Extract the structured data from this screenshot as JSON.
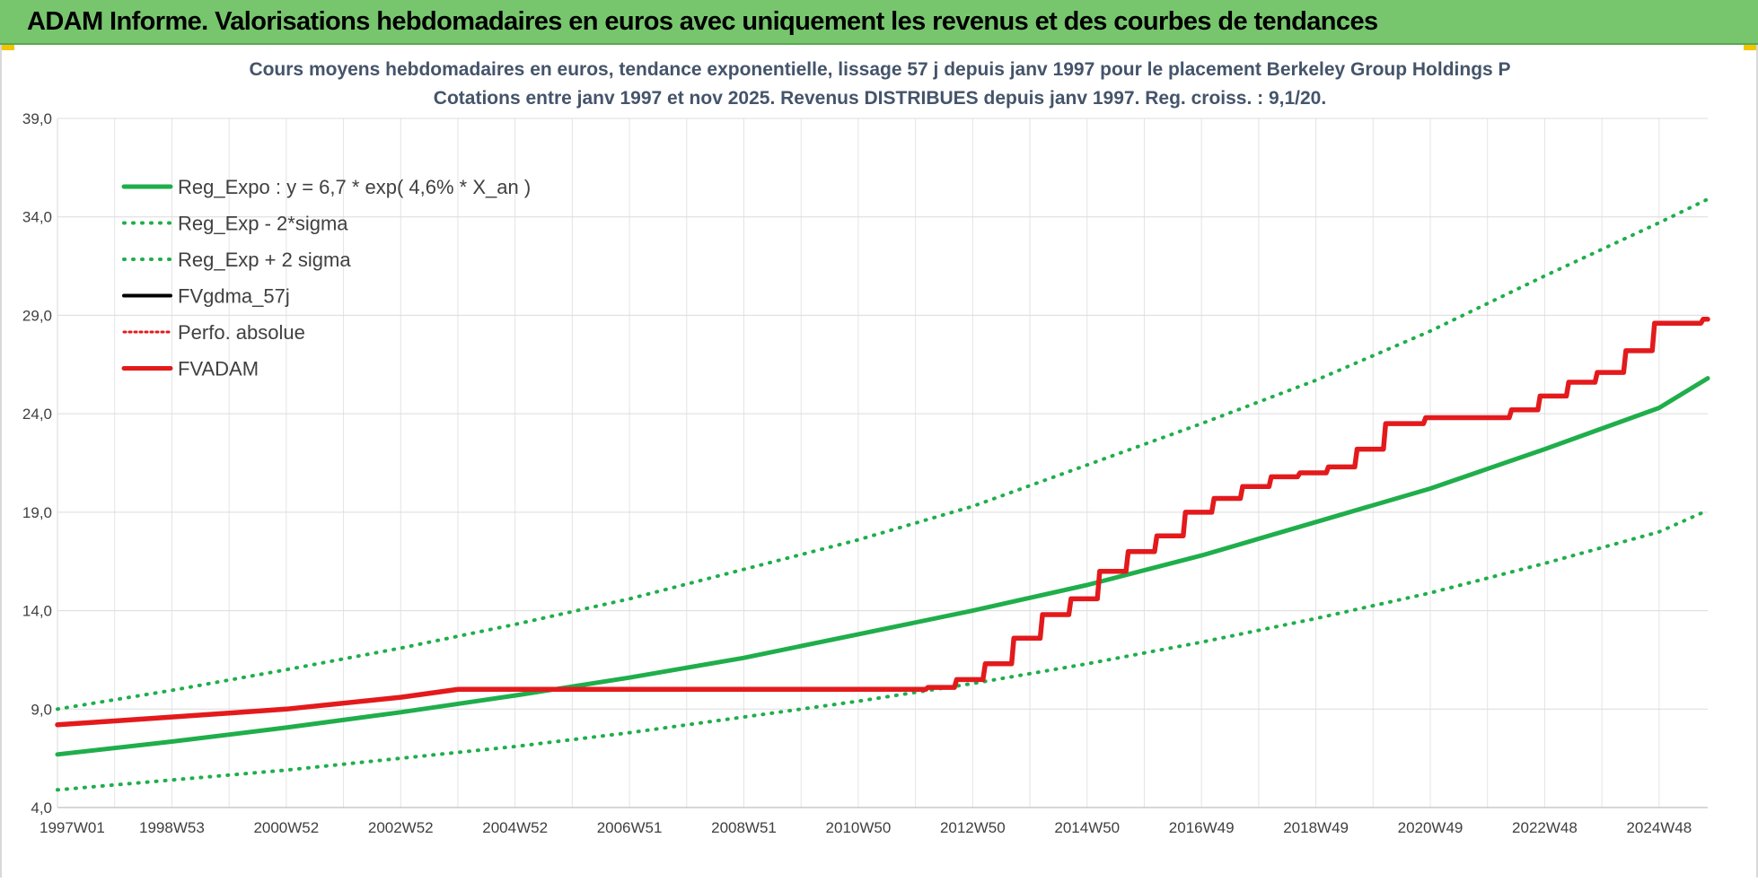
{
  "header": {
    "title": "ADAM Informe. Valorisations hebdomadaires en euros avec uniquement les revenus et des courbes de tendances"
  },
  "chart_data": {
    "type": "line",
    "title": "Cours moyens hebdomadaires en euros, tendance exponentielle, lissage 57 j depuis janv 1997 pour le placement Berkeley Group Holdings P",
    "subtitle": "Cotations entre janv 1997 et nov 2025. Revenus DISTRIBUES depuis janv 1997. Reg. croiss. : 9,1/20.",
    "xlabel": "",
    "ylabel": "",
    "x_range": [
      1997.0,
      2025.85
    ],
    "ylim": [
      4,
      39
    ],
    "y_ticks": [
      4.0,
      9.0,
      14.0,
      19.0,
      24.0,
      29.0,
      34.0,
      39.0
    ],
    "y_tick_labels": [
      "4,0",
      "9,0",
      "14,0",
      "19,0",
      "24,0",
      "29,0",
      "34,0",
      "39,0"
    ],
    "x_ticks": [
      1997.0,
      1999.0,
      2001.0,
      2003.0,
      2005.0,
      2007.0,
      2009.0,
      2011.0,
      2013.0,
      2015.0,
      2017.0,
      2019.0,
      2021.0,
      2023.0,
      2025.0
    ],
    "x_tick_labels": [
      "1997W01",
      "1998W53",
      "2000W52",
      "2002W52",
      "2004W52",
      "2006W51",
      "2008W51",
      "2010W50",
      "2012W50",
      "2014W50",
      "2016W49",
      "2018W49",
      "2020W49",
      "2022W48",
      "2024W48"
    ],
    "grid": true,
    "legend_position": "top-left",
    "series": [
      {
        "name": "Reg_Expo : y = 6,7 * exp( 4,6% *  X_an )",
        "color": "#1fae4b",
        "style": "solid",
        "x": [
          1997.0,
          1999.0,
          2001.0,
          2003.0,
          2005.0,
          2007.0,
          2009.0,
          2011.0,
          2013.0,
          2015.0,
          2017.0,
          2019.0,
          2021.0,
          2023.0,
          2025.0,
          2025.85
        ],
        "y": [
          6.7,
          7.35,
          8.06,
          8.84,
          9.69,
          10.6,
          11.6,
          12.8,
          14.0,
          15.3,
          16.8,
          18.5,
          20.2,
          22.2,
          24.3,
          25.8
        ]
      },
      {
        "name": "Reg_Exp - 2*sigma",
        "color": "#1fae4b",
        "style": "dotted",
        "x": [
          1997.0,
          1999.0,
          2001.0,
          2003.0,
          2005.0,
          2007.0,
          2009.0,
          2011.0,
          2013.0,
          2015.0,
          2017.0,
          2019.0,
          2021.0,
          2023.0,
          2025.0,
          2025.85
        ],
        "y": [
          4.9,
          5.4,
          5.9,
          6.5,
          7.1,
          7.8,
          8.6,
          9.4,
          10.3,
          11.3,
          12.4,
          13.6,
          14.9,
          16.4,
          18.0,
          19.1
        ]
      },
      {
        "name": "Reg_Exp + 2 sigma",
        "color": "#1fae4b",
        "style": "dotted",
        "x": [
          1997.0,
          1999.0,
          2001.0,
          2003.0,
          2005.0,
          2007.0,
          2009.0,
          2011.0,
          2013.0,
          2015.0,
          2017.0,
          2019.0,
          2021.0,
          2023.0,
          2025.0,
          2025.85
        ],
        "y": [
          9.0,
          9.95,
          11.0,
          12.1,
          13.3,
          14.6,
          16.1,
          17.6,
          19.3,
          21.4,
          23.5,
          25.7,
          28.2,
          31.0,
          33.7,
          34.9
        ]
      },
      {
        "name": "FVgdma_57j",
        "color": "#000000",
        "style": "solid",
        "x": [
          1997.0,
          1998.0,
          1999.0,
          2000.0,
          2001.0,
          2002.0,
          2003.0,
          2004.0,
          2005.0,
          2010.0,
          2012.3,
          2012.8,
          2013.3,
          2013.8,
          2014.3,
          2014.8,
          2015.3,
          2015.8,
          2016.3,
          2016.8,
          2017.3,
          2017.8,
          2018.3,
          2018.8,
          2019.3,
          2019.8,
          2020.3,
          2021.0,
          2022.0,
          2022.5,
          2023.0,
          2023.5,
          2024.0,
          2024.5,
          2025.0,
          2025.85
        ],
        "y": [
          8.2,
          8.4,
          8.6,
          8.8,
          9.0,
          9.3,
          9.6,
          10.0,
          10.0,
          10.0,
          10.1,
          10.5,
          11.3,
          12.6,
          13.8,
          14.6,
          16.0,
          17.0,
          17.8,
          19.0,
          19.7,
          20.3,
          20.8,
          21.0,
          21.3,
          22.2,
          23.5,
          23.8,
          23.8,
          24.2,
          24.9,
          25.6,
          26.1,
          27.2,
          28.6,
          28.8
        ]
      },
      {
        "name": "Perfo. absolue",
        "color": "#e31a1c",
        "style": "dotted",
        "x": [
          1997.0,
          1998.0,
          1999.0,
          2000.0,
          2001.0,
          2002.0,
          2003.0,
          2004.0,
          2005.0,
          2010.0,
          2012.3,
          2012.8,
          2013.3,
          2013.8,
          2014.3,
          2014.8,
          2015.3,
          2015.8,
          2016.3,
          2016.8,
          2017.3,
          2017.8,
          2018.3,
          2018.8,
          2019.3,
          2019.8,
          2020.3,
          2021.0,
          2022.0,
          2022.5,
          2023.0,
          2023.5,
          2024.0,
          2024.5,
          2025.0,
          2025.85
        ],
        "y": [
          8.2,
          8.4,
          8.6,
          8.8,
          9.0,
          9.3,
          9.6,
          10.0,
          10.0,
          10.0,
          10.1,
          10.5,
          11.3,
          12.6,
          13.8,
          14.6,
          16.0,
          17.0,
          17.8,
          19.0,
          19.7,
          20.3,
          20.8,
          21.0,
          21.3,
          22.2,
          23.5,
          23.8,
          23.8,
          24.2,
          24.9,
          25.6,
          26.1,
          27.2,
          28.6,
          28.8
        ]
      },
      {
        "name": "FVADAM",
        "color": "#e31a1c",
        "style": "solid",
        "x": [
          1997.0,
          1998.0,
          1999.0,
          2000.0,
          2001.0,
          2002.0,
          2003.0,
          2004.0,
          2005.0,
          2010.0,
          2012.3,
          2012.8,
          2013.3,
          2013.8,
          2014.3,
          2014.8,
          2015.3,
          2015.8,
          2016.3,
          2016.8,
          2017.3,
          2017.8,
          2018.3,
          2018.8,
          2019.3,
          2019.8,
          2020.3,
          2021.0,
          2022.0,
          2022.5,
          2023.0,
          2023.5,
          2024.0,
          2024.5,
          2025.0,
          2025.85
        ],
        "y": [
          8.2,
          8.4,
          8.6,
          8.8,
          9.0,
          9.3,
          9.6,
          10.0,
          10.0,
          10.0,
          10.1,
          10.5,
          11.3,
          12.6,
          13.8,
          14.6,
          16.0,
          17.0,
          17.8,
          19.0,
          19.7,
          20.3,
          20.8,
          21.0,
          21.3,
          22.2,
          23.5,
          23.8,
          23.8,
          24.2,
          24.9,
          25.6,
          26.1,
          27.2,
          28.6,
          28.8
        ]
      }
    ]
  }
}
